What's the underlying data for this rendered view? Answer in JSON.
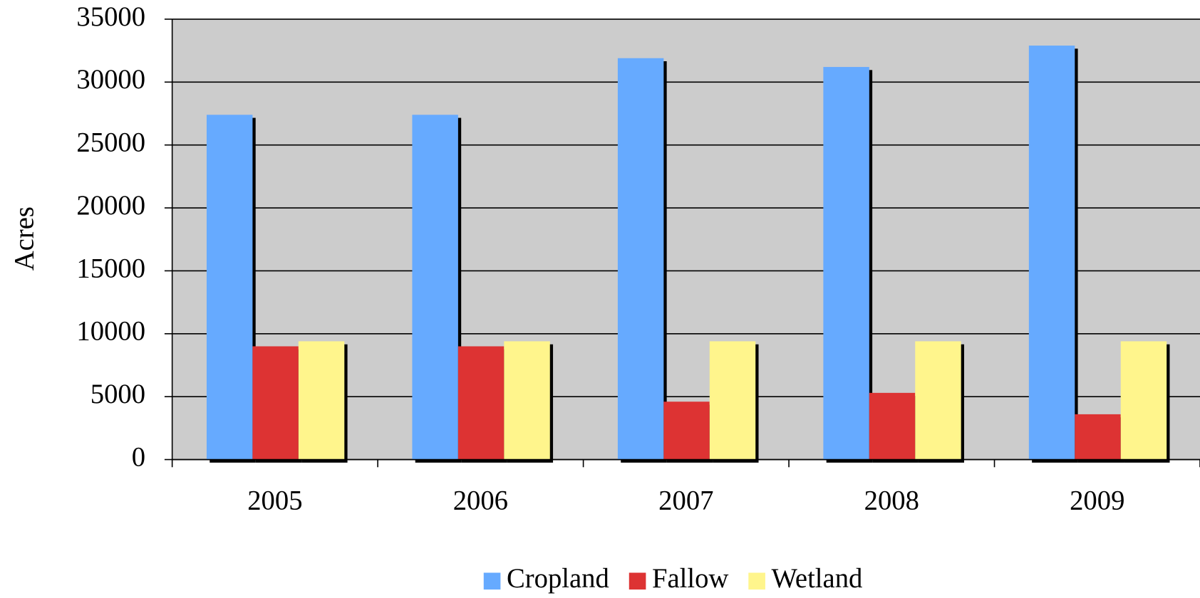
{
  "chart_data": {
    "type": "bar",
    "y_label": "Acres",
    "categories": [
      "2005",
      "2006",
      "2007",
      "2008",
      "2009"
    ],
    "series": [
      {
        "name": "Cropland",
        "color": "#66aaff",
        "values": [
          27400,
          27400,
          31900,
          31200,
          32900
        ]
      },
      {
        "name": "Fallow",
        "color": "#dd3333",
        "values": [
          9000,
          9000,
          4600,
          5300,
          3600
        ]
      },
      {
        "name": "Wetland",
        "color": "#fff58c",
        "values": [
          9400,
          9400,
          9400,
          9400,
          9400
        ]
      }
    ],
    "ylim": [
      0,
      35000
    ],
    "yticks": [
      0,
      5000,
      10000,
      15000,
      20000,
      25000,
      30000,
      35000
    ],
    "grid": true,
    "legend": "bottom"
  }
}
